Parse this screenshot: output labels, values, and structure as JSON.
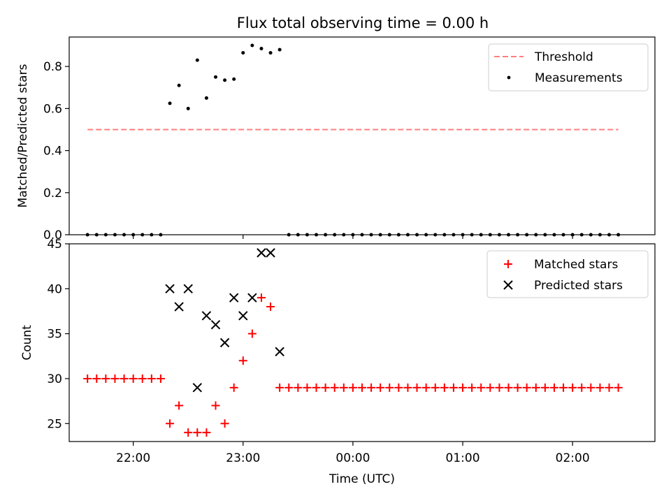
{
  "title": "Flux total observing time = 0.00 h",
  "colors": {
    "matched": "#ff0000",
    "predicted": "#000000",
    "threshold": "#ff7f7f",
    "measurement": "#000000"
  },
  "chart_data": [
    {
      "type": "scatter",
      "panel": "top",
      "ylabel": "Matched/Predicted stars",
      "ylim": [
        0,
        0.94
      ],
      "yticks": [
        0.0,
        0.2,
        0.4,
        0.6,
        0.8
      ],
      "ytick_labels": [
        "0.0",
        "0.2",
        "0.4",
        "0.6",
        "0.8"
      ],
      "xlim": [
        "21:25",
        "02:45"
      ],
      "legend_placement": "top-right",
      "legend": [
        "Threshold",
        "Measurements"
      ],
      "series": [
        {
          "name": "Threshold",
          "style": "dashed-line",
          "x": [
            "21:35",
            "02:25"
          ],
          "y": [
            0.5,
            0.5
          ]
        },
        {
          "name": "Measurements",
          "style": "dot",
          "x": [
            "21:35",
            "21:40",
            "21:45",
            "21:50",
            "21:55",
            "22:00",
            "22:05",
            "22:10",
            "22:15",
            "22:20",
            "22:25",
            "22:30",
            "22:35",
            "22:40",
            "22:45",
            "22:50",
            "22:55",
            "23:00",
            "23:05",
            "23:10",
            "23:15",
            "23:20",
            "23:25",
            "23:30",
            "23:35",
            "23:40",
            "23:45",
            "23:50",
            "23:55",
            "00:00",
            "00:05",
            "00:10",
            "00:15",
            "00:20",
            "00:25",
            "00:30",
            "00:35",
            "00:40",
            "00:45",
            "00:50",
            "00:55",
            "01:00",
            "01:05",
            "01:10",
            "01:15",
            "01:20",
            "01:25",
            "01:30",
            "01:35",
            "01:40",
            "01:45",
            "01:50",
            "01:55",
            "02:00",
            "02:05",
            "02:10",
            "02:15",
            "02:20",
            "02:25"
          ],
          "y": [
            0,
            0,
            0,
            0,
            0,
            0,
            0,
            0,
            0,
            0.625,
            0.71,
            0.6,
            0.83,
            0.65,
            0.75,
            0.735,
            0.74,
            0.865,
            0.9,
            0.885,
            0.865,
            0.88,
            0,
            0,
            0,
            0,
            0,
            0,
            0,
            0,
            0,
            0,
            0,
            0,
            0,
            0,
            0,
            0,
            0,
            0,
            0,
            0,
            0,
            0,
            0,
            0,
            0,
            0,
            0,
            0,
            0,
            0,
            0,
            0,
            0,
            0,
            0,
            0,
            0
          ]
        }
      ]
    },
    {
      "type": "scatter",
      "panel": "bottom",
      "xlabel": "Time (UTC)",
      "ylabel": "Count",
      "ylim": [
        23,
        45
      ],
      "yticks": [
        25,
        30,
        35,
        40,
        45
      ],
      "ytick_labels": [
        "25",
        "30",
        "35",
        "40",
        "45"
      ],
      "xlim": [
        "21:25",
        "02:45"
      ],
      "xticks": [
        "22:00",
        "23:00",
        "00:00",
        "01:00",
        "02:00"
      ],
      "xtick_labels": [
        "22:00",
        "23:00",
        "00:00",
        "01:00",
        "02:00"
      ],
      "legend_placement": "top-right",
      "legend": [
        "Matched stars",
        "Predicted stars"
      ],
      "series": [
        {
          "name": "Matched stars",
          "marker": "+",
          "x": [
            "21:35",
            "21:40",
            "21:45",
            "21:50",
            "21:55",
            "22:00",
            "22:05",
            "22:10",
            "22:15",
            "22:20",
            "22:25",
            "22:30",
            "22:35",
            "22:40",
            "22:45",
            "22:50",
            "22:55",
            "23:00",
            "23:05",
            "23:10",
            "23:15",
            "23:20",
            "23:25",
            "23:30",
            "23:35",
            "23:40",
            "23:45",
            "23:50",
            "23:55",
            "00:00",
            "00:05",
            "00:10",
            "00:15",
            "00:20",
            "00:25",
            "00:30",
            "00:35",
            "00:40",
            "00:45",
            "00:50",
            "00:55",
            "01:00",
            "01:05",
            "01:10",
            "01:15",
            "01:20",
            "01:25",
            "01:30",
            "01:35",
            "01:40",
            "01:45",
            "01:50",
            "01:55",
            "02:00",
            "02:05",
            "02:10",
            "02:15",
            "02:20",
            "02:25"
          ],
          "y": [
            30,
            30,
            30,
            30,
            30,
            30,
            30,
            30,
            30,
            25,
            27,
            24,
            24,
            24,
            27,
            25,
            29,
            32,
            35,
            39,
            38,
            29,
            29,
            29,
            29,
            29,
            29,
            29,
            29,
            29,
            29,
            29,
            29,
            29,
            29,
            29,
            29,
            29,
            29,
            29,
            29,
            29,
            29,
            29,
            29,
            29,
            29,
            29,
            29,
            29,
            29,
            29,
            29,
            29,
            29,
            29,
            29,
            29,
            29
          ]
        },
        {
          "name": "Predicted stars",
          "marker": "x",
          "x": [
            "22:20",
            "22:25",
            "22:30",
            "22:35",
            "22:40",
            "22:45",
            "22:50",
            "22:55",
            "23:00",
            "23:05",
            "23:10",
            "23:15",
            "23:20"
          ],
          "y": [
            40,
            38,
            40,
            29,
            37,
            36,
            34,
            39,
            37,
            39,
            44,
            44,
            33
          ]
        }
      ]
    }
  ]
}
